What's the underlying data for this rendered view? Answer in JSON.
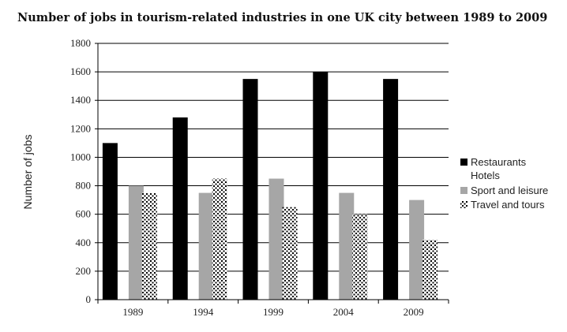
{
  "chart_data": {
    "type": "bar",
    "title": "Number of jobs in tourism-related industries in one UK city between 1989 to 2009",
    "xlabel": "",
    "ylabel": "Number of jobs",
    "categories": [
      "1989",
      "1994",
      "1999",
      "2004",
      "2009"
    ],
    "ylim": [
      0,
      1800
    ],
    "yticks": [
      0,
      200,
      400,
      600,
      800,
      1000,
      1200,
      1400,
      1600,
      1800
    ],
    "grid": true,
    "legend_position": "right",
    "series": [
      {
        "name": "Restaurants",
        "color": "#000000",
        "pattern": "solid",
        "values": [
          1100,
          1280,
          1550,
          1600,
          1550
        ]
      },
      {
        "name": "Hotels",
        "color": "#ffffff",
        "pattern": "none",
        "values": [
          0,
          0,
          0,
          0,
          0
        ]
      },
      {
        "name": "Sport and leisure",
        "color": "#a6a6a6",
        "pattern": "solid",
        "values": [
          800,
          750,
          850,
          750,
          700
        ]
      },
      {
        "name": "Travel and tours",
        "color": "#000000",
        "pattern": "dots",
        "values": [
          750,
          850,
          650,
          600,
          420
        ]
      }
    ]
  }
}
